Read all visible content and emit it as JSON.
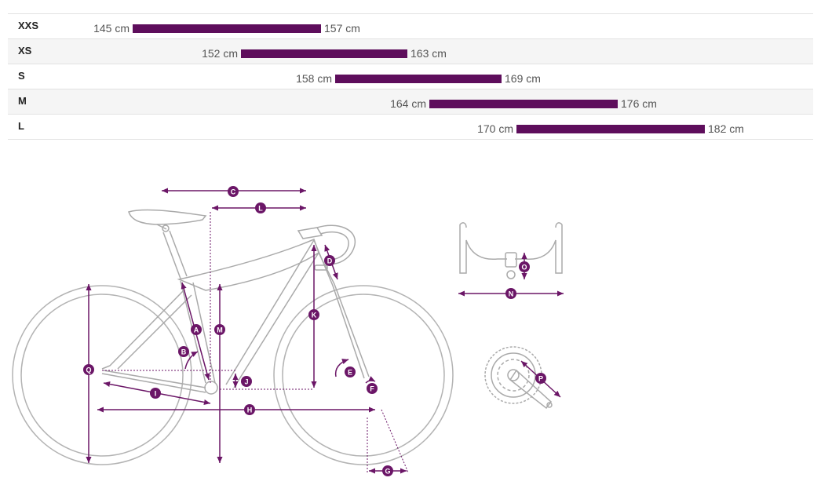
{
  "sizes": [
    {
      "label": "XXS",
      "min": "145 cm",
      "max": "157 cm"
    },
    {
      "label": "XS",
      "min": "152 cm",
      "max": "163 cm"
    },
    {
      "label": "S",
      "min": "158 cm",
      "max": "169 cm"
    },
    {
      "label": "M",
      "min": "164 cm",
      "max": "176 cm"
    },
    {
      "label": "L",
      "min": "170 cm",
      "max": "182 cm"
    }
  ],
  "geometry_labels": {
    "A": "A",
    "B": "B",
    "C": "C",
    "D": "D",
    "E": "E",
    "F": "F",
    "G": "G",
    "H": "H",
    "I": "I",
    "J": "J",
    "K": "K",
    "L": "L",
    "M": "M",
    "N": "N",
    "O": "O",
    "P": "P",
    "Q": "Q"
  },
  "colors": {
    "accent": "#5e0e5c",
    "dimension": "#6b1667",
    "frame_outline": "#aaaaaa",
    "row_alt": "#f5f5f5"
  }
}
